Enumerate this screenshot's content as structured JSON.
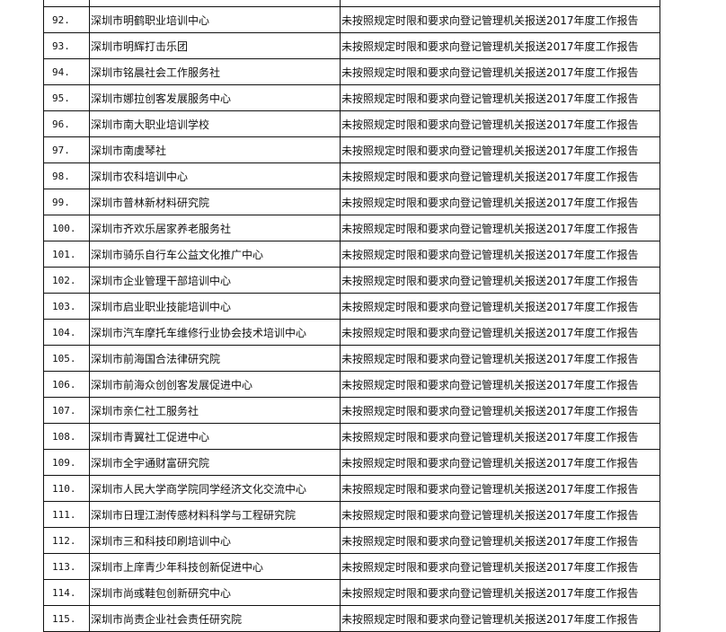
{
  "table": {
    "rows": [
      {
        "num": "",
        "name": "",
        "reason": ""
      },
      {
        "num": "92.",
        "name": "深圳市明鹤职业培训中心",
        "reason": "未按照规定时限和要求向登记管理机关报送2017年度工作报告"
      },
      {
        "num": "93.",
        "name": "深圳市明辉打击乐团",
        "reason": "未按照规定时限和要求向登记管理机关报送2017年度工作报告"
      },
      {
        "num": "94.",
        "name": "深圳市铭晨社会工作服务社",
        "reason": "未按照规定时限和要求向登记管理机关报送2017年度工作报告"
      },
      {
        "num": "95.",
        "name": "深圳市娜拉创客发展服务中心",
        "reason": "未按照规定时限和要求向登记管理机关报送2017年度工作报告"
      },
      {
        "num": "96.",
        "name": "深圳市南大职业培训学校",
        "reason": "未按照规定时限和要求向登记管理机关报送2017年度工作报告"
      },
      {
        "num": "97.",
        "name": "深圳市南虞琴社",
        "reason": "未按照规定时限和要求向登记管理机关报送2017年度工作报告"
      },
      {
        "num": "98.",
        "name": "深圳市农科培训中心",
        "reason": "未按照规定时限和要求向登记管理机关报送2017年度工作报告"
      },
      {
        "num": "99.",
        "name": "深圳市普林新材料研究院",
        "reason": "未按照规定时限和要求向登记管理机关报送2017年度工作报告"
      },
      {
        "num": "100.",
        "name": "深圳市齐欢乐居家养老服务社",
        "reason": "未按照规定时限和要求向登记管理机关报送2017年度工作报告"
      },
      {
        "num": "101.",
        "name": "深圳市骑乐自行车公益文化推广中心",
        "reason": "未按照规定时限和要求向登记管理机关报送2017年度工作报告"
      },
      {
        "num": "102.",
        "name": "深圳市企业管理干部培训中心",
        "reason": "未按照规定时限和要求向登记管理机关报送2017年度工作报告"
      },
      {
        "num": "103.",
        "name": "深圳市启业职业技能培训中心",
        "reason": "未按照规定时限和要求向登记管理机关报送2017年度工作报告"
      },
      {
        "num": "104.",
        "name": "深圳市汽车摩托车维修行业协会技术培训中心",
        "reason": "未按照规定时限和要求向登记管理机关报送2017年度工作报告"
      },
      {
        "num": "105.",
        "name": "深圳市前海国合法律研究院",
        "reason": "未按照规定时限和要求向登记管理机关报送2017年度工作报告"
      },
      {
        "num": "106.",
        "name": "深圳市前海众创创客发展促进中心",
        "reason": "未按照规定时限和要求向登记管理机关报送2017年度工作报告"
      },
      {
        "num": "107.",
        "name": "深圳市亲仁社工服务社",
        "reason": "未按照规定时限和要求向登记管理机关报送2017年度工作报告"
      },
      {
        "num": "108.",
        "name": "深圳市青翼社工促进中心",
        "reason": "未按照规定时限和要求向登记管理机关报送2017年度工作报告"
      },
      {
        "num": "109.",
        "name": "深圳市全宇通财富研究院",
        "reason": "未按照规定时限和要求向登记管理机关报送2017年度工作报告"
      },
      {
        "num": "110.",
        "name": "深圳市人民大学商学院同学经济文化交流中心",
        "reason": "未按照规定时限和要求向登记管理机关报送2017年度工作报告"
      },
      {
        "num": "111.",
        "name": "深圳市日理江澍传感材料科学与工程研究院",
        "reason": "未按照规定时限和要求向登记管理机关报送2017年度工作报告"
      },
      {
        "num": "112.",
        "name": "深圳市三和科技印刷培训中心",
        "reason": "未按照规定时限和要求向登记管理机关报送2017年度工作报告"
      },
      {
        "num": "113.",
        "name": "深圳市上庠青少年科技创新促进中心",
        "reason": "未按照规定时限和要求向登记管理机关报送2017年度工作报告"
      },
      {
        "num": "114.",
        "name": "深圳市尚彧鞋包创新研究中心",
        "reason": "未按照规定时限和要求向登记管理机关报送2017年度工作报告"
      },
      {
        "num": "115.",
        "name": "深圳市尚责企业社会责任研究院",
        "reason": "未按照规定时限和要求向登记管理机关报送2017年度工作报告"
      }
    ]
  }
}
